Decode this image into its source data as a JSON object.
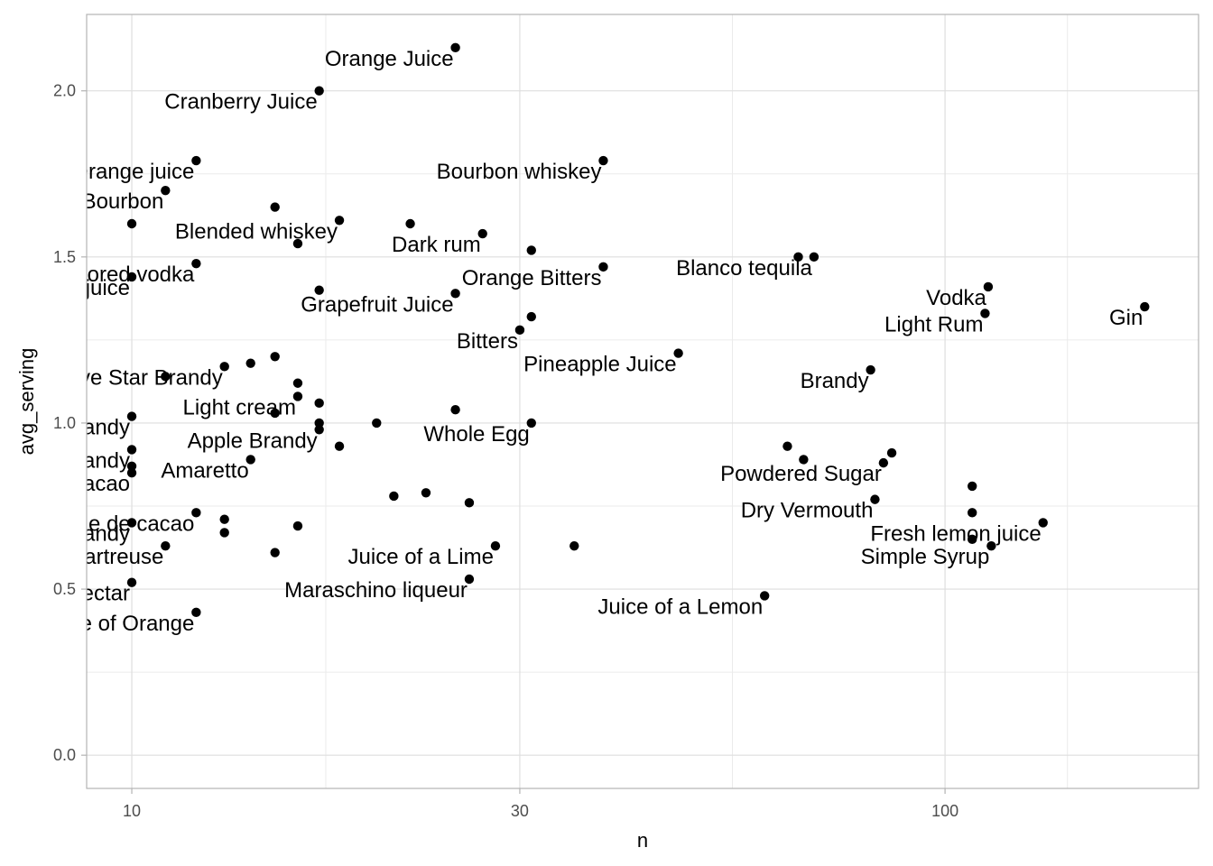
{
  "chart_data": {
    "type": "scatter",
    "xlabel": "n",
    "ylabel": "avg_serving",
    "x_scale": "log10",
    "xlim": [
      8.8,
      205
    ],
    "ylim": [
      -0.1,
      2.23
    ],
    "x_ticks": [
      10,
      30,
      100
    ],
    "y_ticks": [
      0.0,
      0.5,
      1.0,
      1.5,
      2.0
    ],
    "y_tick_labels": [
      "0.0",
      "0.5",
      "1.0",
      "1.5",
      "2.0"
    ],
    "grid": true,
    "point_color": "#000000",
    "points": [
      {
        "label": "Orange Juice",
        "n": 25,
        "avg_serving": 2.13
      },
      {
        "label": "Cranberry Juice",
        "n": 17,
        "avg_serving": 2.0
      },
      {
        "label": "Orange juice",
        "n": 12,
        "avg_serving": 1.79
      },
      {
        "label": "Bourbon",
        "n": 11,
        "avg_serving": 1.7
      },
      {
        "label": "Bourbon whiskey",
        "n": 38,
        "avg_serving": 1.79
      },
      {
        "label": "",
        "n": 15,
        "avg_serving": 1.65
      },
      {
        "label": "",
        "n": 10,
        "avg_serving": 1.6
      },
      {
        "label": "Blended whiskey",
        "n": 18,
        "avg_serving": 1.61
      },
      {
        "label": "",
        "n": 22,
        "avg_serving": 1.6
      },
      {
        "label": "Dark rum",
        "n": 27,
        "avg_serving": 1.57
      },
      {
        "label": "",
        "n": 16,
        "avg_serving": 1.54
      },
      {
        "label": "",
        "n": 31,
        "avg_serving": 1.52
      },
      {
        "label": "Citrus-flavored vodka",
        "n": 12,
        "avg_serving": 1.48
      },
      {
        "label": "Orange Bitters",
        "n": 38,
        "avg_serving": 1.47
      },
      {
        "label": "Blanco tequila",
        "n": 69,
        "avg_serving": 1.5
      },
      {
        "label": "",
        "n": 66,
        "avg_serving": 1.5
      },
      {
        "label": "Grapefruit juice",
        "n": 10,
        "avg_serving": 1.44
      },
      {
        "label": "",
        "n": 17,
        "avg_serving": 1.4
      },
      {
        "label": "Grapefruit Juice",
        "n": 25,
        "avg_serving": 1.39
      },
      {
        "label": "Vodka",
        "n": 113,
        "avg_serving": 1.41
      },
      {
        "label": "Light Rum",
        "n": 112,
        "avg_serving": 1.33
      },
      {
        "label": "Gin",
        "n": 176,
        "avg_serving": 1.35
      },
      {
        "label": "",
        "n": 31,
        "avg_serving": 1.32
      },
      {
        "label": "Bitters",
        "n": 30,
        "avg_serving": 1.28
      },
      {
        "label": "Pineapple Juice",
        "n": 47,
        "avg_serving": 1.21
      },
      {
        "label": "",
        "n": 15,
        "avg_serving": 1.2
      },
      {
        "label": "",
        "n": 14,
        "avg_serving": 1.18
      },
      {
        "label": "Five Star Brandy",
        "n": 13,
        "avg_serving": 1.17
      },
      {
        "label": "Brandy",
        "n": 81,
        "avg_serving": 1.16
      },
      {
        "label": "",
        "n": 11,
        "avg_serving": 1.14
      },
      {
        "label": "",
        "n": 16,
        "avg_serving": 1.12
      },
      {
        "label": "Light cream",
        "n": 16,
        "avg_serving": 1.08
      },
      {
        "label": "",
        "n": 17,
        "avg_serving": 1.06
      },
      {
        "label": "",
        "n": 25,
        "avg_serving": 1.04
      },
      {
        "label": "",
        "n": 15,
        "avg_serving": 1.03
      },
      {
        "label": "Cherry flavored brandy",
        "n": 10,
        "avg_serving": 1.02
      },
      {
        "label": "",
        "n": 17,
        "avg_serving": 1.0
      },
      {
        "label": "",
        "n": 20,
        "avg_serving": 1.0
      },
      {
        "label": "Whole Egg",
        "n": 31,
        "avg_serving": 1.0
      },
      {
        "label": "Apple Brandy",
        "n": 17,
        "avg_serving": 0.98
      },
      {
        "label": "",
        "n": 18,
        "avg_serving": 0.93
      },
      {
        "label": "Brandy",
        "n": 10,
        "avg_serving": 0.92
      },
      {
        "label": "",
        "n": 64,
        "avg_serving": 0.93
      },
      {
        "label": "",
        "n": 86,
        "avg_serving": 0.91
      },
      {
        "label": "",
        "n": 67,
        "avg_serving": 0.89
      },
      {
        "label": "Amaretto",
        "n": 14,
        "avg_serving": 0.89
      },
      {
        "label": "Powdered Sugar",
        "n": 84,
        "avg_serving": 0.88
      },
      {
        "label": "",
        "n": 10,
        "avg_serving": 0.87
      },
      {
        "label": "Creme de cacao",
        "n": 10,
        "avg_serving": 0.85
      },
      {
        "label": "",
        "n": 108,
        "avg_serving": 0.81
      },
      {
        "label": "",
        "n": 21,
        "avg_serving": 0.78
      },
      {
        "label": "",
        "n": 23,
        "avg_serving": 0.79
      },
      {
        "label": "Dry Vermouth",
        "n": 82,
        "avg_serving": 0.77
      },
      {
        "label": "",
        "n": 26,
        "avg_serving": 0.76
      },
      {
        "label": "",
        "n": 108,
        "avg_serving": 0.73
      },
      {
        "label": "White creme de cacao",
        "n": 12,
        "avg_serving": 0.73
      },
      {
        "label": "",
        "n": 13,
        "avg_serving": 0.71
      },
      {
        "label": "Apricot-Flavored Brandy",
        "n": 10,
        "avg_serving": 0.7
      },
      {
        "label": "",
        "n": 16,
        "avg_serving": 0.69
      },
      {
        "label": "Fresh lemon juice",
        "n": 132,
        "avg_serving": 0.7
      },
      {
        "label": "",
        "n": 13,
        "avg_serving": 0.67
      },
      {
        "label": "",
        "n": 108,
        "avg_serving": 0.65
      },
      {
        "label": "Yellow Chartreuse",
        "n": 11,
        "avg_serving": 0.63
      },
      {
        "label": "Juice of a Lime",
        "n": 28,
        "avg_serving": 0.63
      },
      {
        "label": "",
        "n": 35,
        "avg_serving": 0.63
      },
      {
        "label": "Simple Syrup",
        "n": 114,
        "avg_serving": 0.63
      },
      {
        "label": "",
        "n": 15,
        "avg_serving": 0.61
      },
      {
        "label": "Apricot Nectar",
        "n": 10,
        "avg_serving": 0.52
      },
      {
        "label": "Maraschino liqueur",
        "n": 26,
        "avg_serving": 0.53
      },
      {
        "label": "Juice of a Lemon",
        "n": 60,
        "avg_serving": 0.48
      },
      {
        "label": "Juice of Orange",
        "n": 12,
        "avg_serving": 0.43
      }
    ]
  }
}
